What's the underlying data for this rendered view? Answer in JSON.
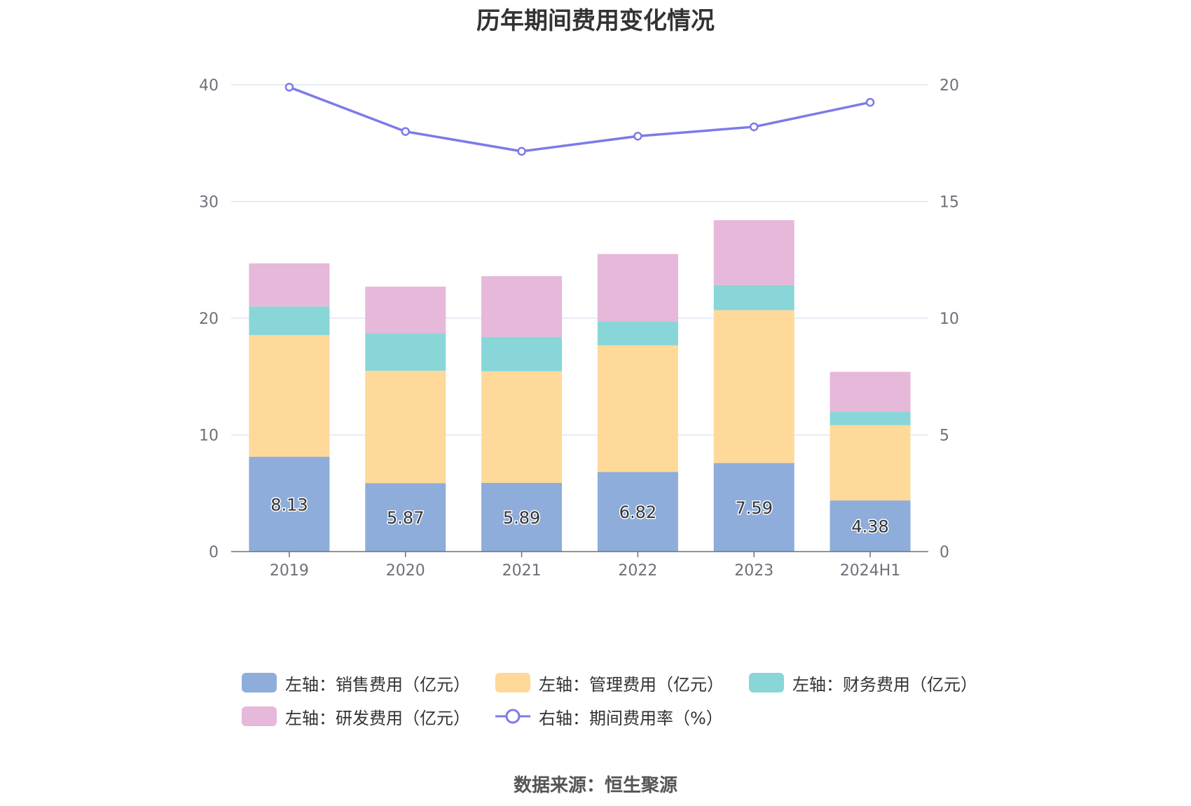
{
  "title": "历年期间费用变化情况",
  "source": "数据来源：恒生聚源",
  "colors": {
    "sales": "#8eadda",
    "admin": "#fed999",
    "finance": "#88d6d8",
    "rd": "#e6b8d9",
    "rate": "#7b7be8",
    "grid": "#e0e6f1",
    "axis": "#6e7079"
  },
  "chart_data": {
    "type": "bar",
    "categories": [
      "2019",
      "2020",
      "2021",
      "2022",
      "2023",
      "2024H1"
    ],
    "y_left": {
      "min": 0,
      "max": 40,
      "ticks": [
        "0",
        "10",
        "20",
        "30",
        "40"
      ]
    },
    "y_right": {
      "min": 0,
      "max": 20,
      "ticks": [
        "0",
        "5",
        "10",
        "15",
        "20"
      ]
    },
    "series": [
      {
        "name": "左轴：销售费用（亿元）",
        "type": "bar",
        "stack": true,
        "axis": "left",
        "values": [
          8.13,
          5.87,
          5.89,
          6.82,
          7.59,
          4.38
        ],
        "labels": [
          "8.13",
          "5.87",
          "5.89",
          "6.82",
          "7.59",
          "4.38"
        ]
      },
      {
        "name": "左轴：管理费用（亿元）",
        "type": "bar",
        "stack": true,
        "axis": "left",
        "values": [
          10.42,
          9.63,
          9.56,
          10.85,
          13.1,
          6.45
        ]
      },
      {
        "name": "左轴：财务费用（亿元）",
        "type": "bar",
        "stack": true,
        "axis": "left",
        "values": [
          2.45,
          3.2,
          2.95,
          2.05,
          2.15,
          1.15
        ]
      },
      {
        "name": "左轴：研发费用（亿元）",
        "type": "bar",
        "stack": true,
        "axis": "left",
        "values": [
          3.7,
          4.0,
          5.2,
          5.78,
          5.56,
          3.42
        ]
      },
      {
        "name": "右轴：期间费用率（%）",
        "type": "line",
        "axis": "right",
        "values": [
          19.9,
          18.0,
          17.15,
          17.8,
          18.2,
          19.25
        ]
      }
    ],
    "grid": true,
    "legend_position": "bottom"
  }
}
